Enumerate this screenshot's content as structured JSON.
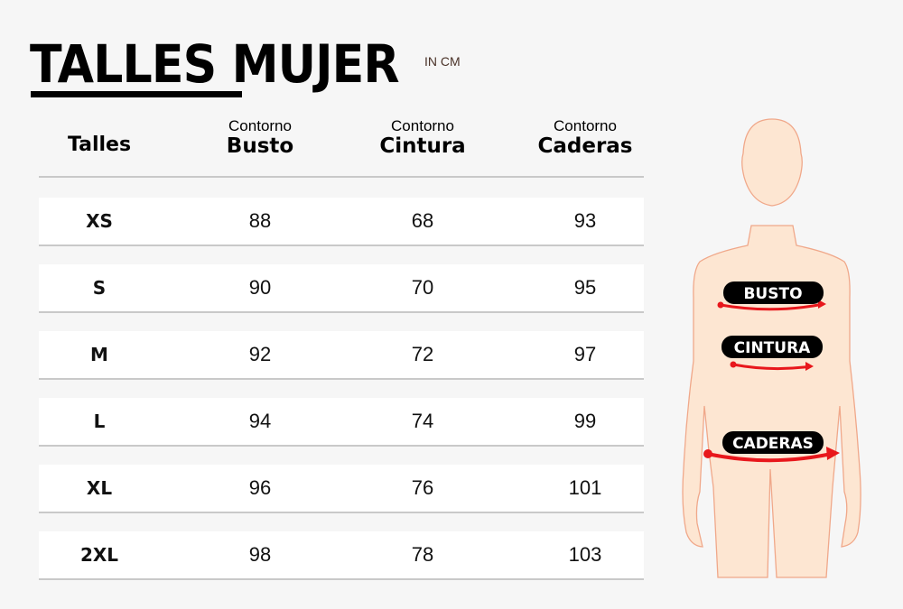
{
  "title": "TALLES MUJER",
  "unit": "IN CM",
  "headers": {
    "size": "Talles",
    "bust": {
      "small": "Contorno",
      "big": "Busto"
    },
    "waist": {
      "small": "Contorno",
      "big": "Cintura"
    },
    "hips": {
      "small": "Contorno",
      "big": "Caderas"
    }
  },
  "rows": [
    {
      "size": "XS",
      "bust": "88",
      "waist": "68",
      "hips": "93"
    },
    {
      "size": "S",
      "bust": "90",
      "waist": "70",
      "hips": "95"
    },
    {
      "size": "M",
      "bust": "92",
      "waist": "72",
      "hips": "97"
    },
    {
      "size": "L",
      "bust": "94",
      "waist": "74",
      "hips": "99"
    },
    {
      "size": "XL",
      "bust": "96",
      "waist": "76",
      "hips": "101"
    },
    {
      "size": "2XL",
      "bust": "98",
      "waist": "78",
      "hips": "103"
    }
  ],
  "figure": {
    "labels": {
      "bust": "BUSTO",
      "waist": "CINTURA",
      "hips": "CADERAS"
    },
    "colors": {
      "skin": "#fde6d2",
      "outline": "#f0a88a",
      "arrow": "#e8171c",
      "label_bg": "#000000"
    }
  }
}
